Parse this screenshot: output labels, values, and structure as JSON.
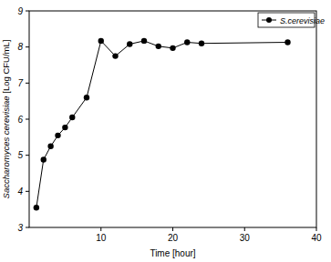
{
  "chart_data": {
    "type": "line",
    "x_label": "Time [hour]",
    "y_label": "Saccharomyces cerevisiae [Log CFU/mL]",
    "x": [
      1,
      2,
      3,
      4,
      5,
      6,
      8,
      10,
      12,
      14,
      16,
      18,
      20,
      22,
      24,
      36
    ],
    "series": [
      {
        "name": "S.cerevisiae",
        "color": "#000000",
        "marker": "circle",
        "line_style": "solid",
        "values": [
          3.55,
          4.88,
          5.25,
          5.55,
          5.77,
          6.05,
          6.6,
          8.17,
          7.75,
          8.08,
          8.17,
          8.02,
          7.97,
          8.13,
          8.1,
          8.13
        ]
      }
    ],
    "xlim": [
      0,
      40
    ],
    "xticks": [
      10,
      20,
      30,
      40
    ],
    "ylim": [
      3,
      9
    ],
    "yticks": [
      3,
      4,
      5,
      6,
      7,
      8,
      9
    ],
    "grid": false,
    "legend": "top-right"
  }
}
